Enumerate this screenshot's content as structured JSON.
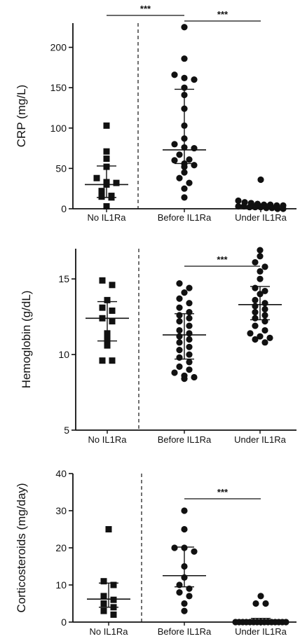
{
  "chart_data": [
    {
      "type": "scatter",
      "ylabel": "CRP (mg/L)",
      "ylim": [
        0,
        230
      ],
      "yticks": [
        0,
        50,
        100,
        150,
        200
      ],
      "categories": [
        "No IL1Ra",
        "Before IL1Ra",
        "Under IL1Ra"
      ],
      "markers": [
        "square",
        "circle",
        "circle"
      ],
      "points": [
        [
          103,
          71,
          62,
          52,
          38,
          33,
          32,
          30,
          22,
          16,
          15,
          14,
          3
        ],
        [
          225,
          186,
          166,
          162,
          160,
          150,
          141,
          124,
          103,
          87,
          80,
          76,
          75,
          67,
          61,
          60,
          56,
          54,
          52,
          45,
          38,
          32,
          25,
          14
        ],
        [
          36,
          10,
          8,
          7,
          6,
          5,
          5,
          4,
          4,
          3,
          3,
          2,
          2,
          2,
          1,
          1,
          0,
          0
        ]
      ],
      "summary": [
        {
          "center": 30,
          "lower": 14,
          "upper": 53
        },
        {
          "center": 73,
          "lower": 56,
          "upper": 148
        },
        {
          "center": 3,
          "lower": 1,
          "upper": 6
        }
      ],
      "significance": [
        {
          "from": 0,
          "to": 1,
          "label": "***"
        },
        {
          "from": 1,
          "to": 2,
          "label": "***"
        }
      ]
    },
    {
      "type": "scatter",
      "ylabel": "Hemoglobin (g/dL)",
      "ylim": [
        5,
        17
      ],
      "yticks": [
        5,
        10,
        15
      ],
      "categories": [
        "No IL1Ra",
        "Before IL1Ra",
        "Under IL1Ra"
      ],
      "markers": [
        "square",
        "circle",
        "circle"
      ],
      "points": [
        [
          14.9,
          14.6,
          13.6,
          13.1,
          12.9,
          12.4,
          12.2,
          11.4,
          11.0,
          10.6,
          9.6,
          9.6
        ],
        [
          14.7,
          14.4,
          14.1,
          13.7,
          13.4,
          13.1,
          12.8,
          12.6,
          12.4,
          12.2,
          11.9,
          11.6,
          11.4,
          11.2,
          11.0,
          10.8,
          10.5,
          10.3,
          10.0,
          9.8,
          9.5,
          9.2,
          9.0,
          8.8,
          8.6,
          8.5,
          8.4
        ],
        [
          16.9,
          16.5,
          16.1,
          15.8,
          15.5,
          15.0,
          14.4,
          14.2,
          14.0,
          13.6,
          13.4,
          13.2,
          13.0,
          12.8,
          12.6,
          12.4,
          12.2,
          11.9,
          11.6,
          11.4,
          11.2,
          11.1,
          11.0,
          10.8
        ]
      ],
      "summary": [
        {
          "center": 12.4,
          "lower": 10.9,
          "upper": 13.5
        },
        {
          "center": 11.3,
          "lower": 9.7,
          "upper": 12.7
        },
        {
          "center": 13.3,
          "lower": 12.3,
          "upper": 14.5
        }
      ],
      "significance": [
        {
          "from": 1,
          "to": 2,
          "label": "***"
        }
      ]
    },
    {
      "type": "scatter",
      "ylabel": "Corticosteroids (mg/day)",
      "ylim": [
        0,
        40
      ],
      "yticks": [
        0,
        10,
        20,
        30,
        40
      ],
      "categories": [
        "No IL1Ra",
        "Before IL1Ra",
        "Under IL1Ra"
      ],
      "markers": [
        "square",
        "circle",
        "circle"
      ],
      "points": [
        [
          25,
          11,
          10,
          7,
          6,
          5,
          4,
          3,
          2
        ],
        [
          30,
          25,
          20,
          20,
          19,
          15,
          12,
          10,
          9,
          8,
          7,
          5,
          3
        ],
        [
          7,
          5,
          5,
          0,
          0,
          0,
          0,
          0,
          0,
          0,
          0,
          0,
          0,
          0,
          0,
          0,
          0,
          0
        ]
      ],
      "summary": [
        {
          "center": 6.2,
          "lower": 4,
          "upper": 10.5
        },
        {
          "center": 12.5,
          "lower": 9.5,
          "upper": 20.2
        },
        {
          "center": 0,
          "lower": 0,
          "upper": 1
        }
      ],
      "significance": [
        {
          "from": 1,
          "to": 2,
          "label": "***"
        }
      ]
    }
  ]
}
